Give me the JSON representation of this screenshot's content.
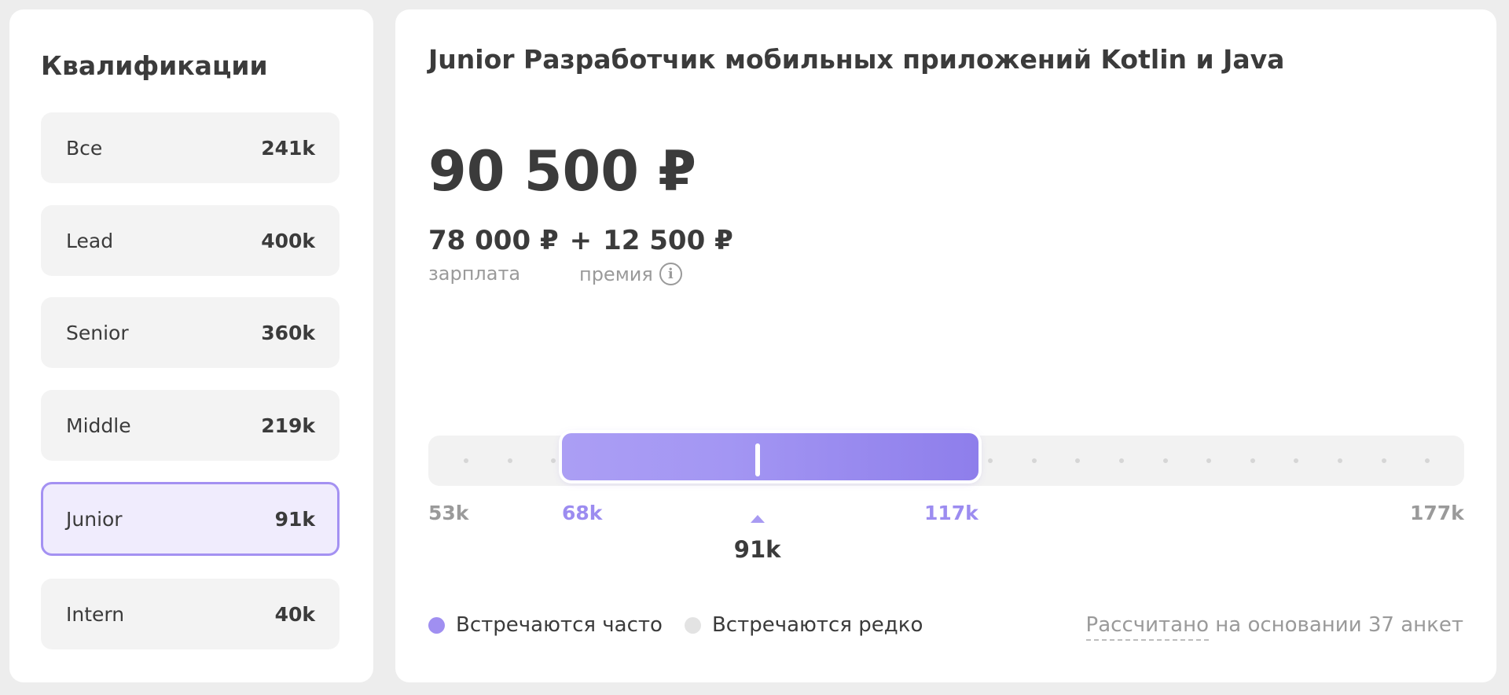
{
  "qualifications": {
    "title": "Квалификации",
    "items": [
      {
        "label": "Все",
        "value": "241k"
      },
      {
        "label": "Lead",
        "value": "400k"
      },
      {
        "label": "Senior",
        "value": "360k"
      },
      {
        "label": "Middle",
        "value": "219k"
      },
      {
        "label": "Junior",
        "value": "91k",
        "selected": true
      },
      {
        "label": "Intern",
        "value": "40k"
      }
    ]
  },
  "job": {
    "title": "Junior Разработчик мобильных приложений Kotlin и Java",
    "total": "90 500 ₽",
    "salary_value": "78 000 ₽",
    "plus": "+",
    "bonus_value": "12 500 ₽",
    "salary_label": "зарплата",
    "bonus_label": "премия",
    "info_glyph": "i"
  },
  "range": {
    "min_label": "53k",
    "low_label": "68k",
    "high_label": "117k",
    "max_label": "177k",
    "median_label": "91k",
    "min": 53,
    "low": 68,
    "high": 117,
    "max": 177,
    "median": 91
  },
  "legend": {
    "frequent_label": "Встречаются часто",
    "frequent_color": "#a08ff1",
    "rare_label": "Встречаются редко",
    "rare_color": "#e3e3e3"
  },
  "footnote": {
    "link_text": "Рассчитано",
    "text": " на основании 37 анкет"
  }
}
